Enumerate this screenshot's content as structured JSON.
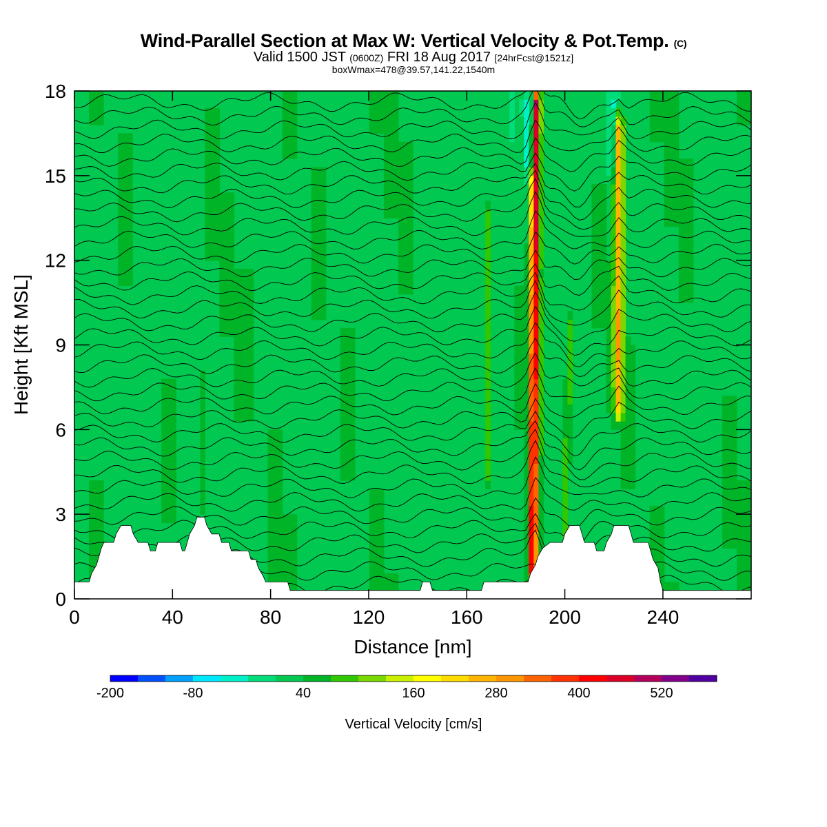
{
  "title": {
    "main": "Wind-Parallel Section at Max W: Vertical Velocity & Pot.Temp.",
    "copyright": "(C)",
    "valid_prefix": "Valid 1500 JST",
    "valid_utc": "(0600Z)",
    "valid_date": "FRI 18 Aug 2017",
    "forecast": "[24hrFcst@1521z]",
    "box_line": "boxWmax=478@39.57,141.22,1540m"
  },
  "colorbar": {
    "label": "Vertical Velocity [cm/s]",
    "tick_labels": [
      "-200",
      "-80",
      "40",
      "160",
      "280",
      "400",
      "520"
    ],
    "levels": [
      -200,
      -160,
      -120,
      -80,
      -40,
      0,
      20,
      40,
      60,
      80,
      120,
      160,
      200,
      240,
      280,
      320,
      360,
      400,
      440,
      480,
      520,
      560
    ],
    "colors": [
      "#0000ff",
      "#0050ff",
      "#00a0ff",
      "#00e8ff",
      "#00f0c8",
      "#00dc7a",
      "#00c850",
      "#00b428",
      "#32c800",
      "#78d800",
      "#c8f000",
      "#ffff00",
      "#ffdc00",
      "#ffb400",
      "#ff9600",
      "#ff6400",
      "#ff3200",
      "#ff0000",
      "#dc0028",
      "#b4005a",
      "#82008c",
      "#5000a0"
    ]
  },
  "chart_data": {
    "type": "heatmap",
    "title": "Wind-Parallel Section at Max W: Vertical Velocity & Pot.Temp.",
    "xlabel": "Distance [nm]",
    "ylabel": "Height [Kft MSL]",
    "xlim": [
      0,
      276
    ],
    "ylim": [
      0,
      18
    ],
    "x_ticks": [
      0,
      40,
      80,
      120,
      160,
      200,
      240
    ],
    "y_ticks": [
      0,
      3,
      6,
      9,
      12,
      15,
      18
    ],
    "x_tick_labels": [
      "0",
      "40",
      "80",
      "120",
      "160",
      "200",
      "240"
    ],
    "y_tick_labels": [
      "0",
      "3",
      "6",
      "9",
      "12",
      "15",
      "18"
    ],
    "units": "cm/s",
    "background_w": 20,
    "updraft_columns": [
      {
        "x": 187,
        "x_top": 188,
        "w_max": 478,
        "y_range": [
          0.5,
          18
        ]
      },
      {
        "x": 222,
        "x_top": 222,
        "w_max": 240,
        "y_range": [
          6.5,
          17
        ]
      },
      {
        "x": 168,
        "x_top": 168,
        "w_max": 60,
        "y_range": [
          4,
          14
        ]
      },
      {
        "x": 200,
        "x_top": 202,
        "w_max": 60,
        "y_range": [
          2,
          10
        ]
      },
      {
        "x": 52,
        "x_top": 52,
        "w_max": 40,
        "y_range": [
          3,
          8
        ]
      }
    ],
    "downdraft_columns": [
      {
        "x": 186,
        "x_top": 186,
        "w_min": -160,
        "y_range": [
          15,
          18
        ]
      },
      {
        "x": 219,
        "x_top": 219,
        "w_min": -40,
        "y_range": [
          15,
          18
        ]
      }
    ],
    "theta_contour_count": 36,
    "terrain": [
      [
        0,
        0.6
      ],
      [
        6,
        0.6
      ],
      [
        7,
        0.9
      ],
      [
        9,
        1.2
      ],
      [
        10,
        1.5
      ],
      [
        11,
        1.8
      ],
      [
        12,
        2.0
      ],
      [
        16,
        2.0
      ],
      [
        17,
        2.3
      ],
      [
        19,
        2.6
      ],
      [
        23,
        2.6
      ],
      [
        24,
        2.3
      ],
      [
        26,
        2.0
      ],
      [
        30,
        2.0
      ],
      [
        31,
        1.7
      ],
      [
        33,
        1.7
      ],
      [
        34,
        2.0
      ],
      [
        43,
        2.0
      ],
      [
        44,
        1.7
      ],
      [
        45,
        1.7
      ],
      [
        46,
        2.0
      ],
      [
        47,
        2.3
      ],
      [
        49,
        2.6
      ],
      [
        50,
        2.9
      ],
      [
        53,
        2.9
      ],
      [
        54,
        2.6
      ],
      [
        56,
        2.3
      ],
      [
        59,
        2.3
      ],
      [
        60,
        2.0
      ],
      [
        63,
        2.0
      ],
      [
        64,
        1.7
      ],
      [
        71,
        1.7
      ],
      [
        72,
        1.4
      ],
      [
        74,
        1.4
      ],
      [
        75,
        1.1
      ],
      [
        77,
        0.8
      ],
      [
        78,
        0.6
      ],
      [
        87,
        0.6
      ],
      [
        88,
        0.3
      ],
      [
        141,
        0.3
      ],
      [
        142,
        0.6
      ],
      [
        145,
        0.6
      ],
      [
        146,
        0.3
      ],
      [
        166,
        0.3
      ],
      [
        167,
        0.6
      ],
      [
        185,
        0.6
      ],
      [
        186,
        0.9
      ],
      [
        188,
        1.2
      ],
      [
        189,
        1.5
      ],
      [
        191,
        1.8
      ],
      [
        194,
        2.0
      ],
      [
        199,
        2.0
      ],
      [
        200,
        2.3
      ],
      [
        202,
        2.6
      ],
      [
        206,
        2.6
      ],
      [
        207,
        2.3
      ],
      [
        208,
        2.0
      ],
      [
        212,
        2.0
      ],
      [
        213,
        1.7
      ],
      [
        216,
        1.7
      ],
      [
        217,
        2.0
      ],
      [
        219,
        2.3
      ],
      [
        220,
        2.6
      ],
      [
        226,
        2.6
      ],
      [
        227,
        2.3
      ],
      [
        228,
        2.0
      ],
      [
        234,
        2.0
      ],
      [
        235,
        1.7
      ],
      [
        236,
        1.4
      ],
      [
        238,
        1.1
      ],
      [
        239,
        0.6
      ],
      [
        240,
        0.3
      ],
      [
        276,
        0.3
      ]
    ]
  }
}
